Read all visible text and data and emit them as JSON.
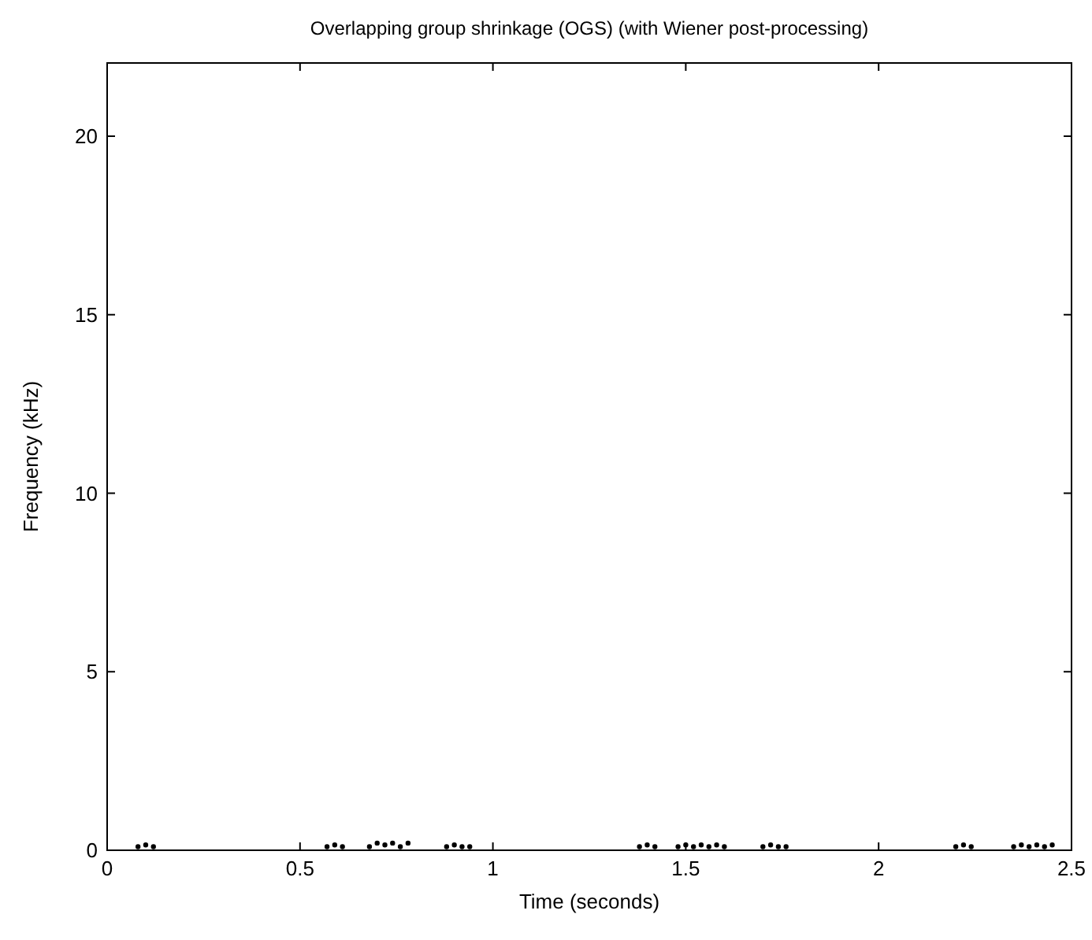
{
  "chart_data": {
    "type": "scatter",
    "title": "Overlapping group shrinkage (OGS) (with Wiener post-processing)",
    "xlabel": "Time (seconds)",
    "ylabel": "Frequency (kHz)",
    "xlim": [
      0,
      2.5
    ],
    "ylim": [
      0,
      22.05
    ],
    "xticks": [
      0,
      0.5,
      1,
      1.5,
      2,
      {
        "value": 2.5,
        "label": "2.5"
      }
    ],
    "yticks": [
      0,
      5,
      10,
      15,
      20
    ],
    "grid": false,
    "marker": "circle",
    "series": [
      {
        "color": "#000000",
        "x": [
          0.08,
          0.1,
          0.12,
          0.57,
          0.59,
          0.61,
          0.68,
          0.7,
          0.72,
          0.74,
          0.76,
          0.78,
          0.88,
          0.9,
          0.92,
          0.94,
          1.38,
          1.4,
          1.42,
          1.48,
          1.5,
          1.52,
          1.54,
          1.56,
          1.58,
          1.6,
          1.7,
          1.72,
          1.74,
          1.76,
          2.2,
          2.22,
          2.24,
          2.35,
          2.37,
          2.39,
          2.41,
          2.43,
          2.45
        ],
        "values": [
          0.1,
          0.15,
          0.1,
          0.1,
          0.15,
          0.1,
          0.1,
          0.2,
          0.15,
          0.2,
          0.1,
          0.2,
          0.1,
          0.15,
          0.1,
          0.1,
          0.1,
          0.15,
          0.1,
          0.1,
          0.15,
          0.1,
          0.15,
          0.1,
          0.15,
          0.1,
          0.1,
          0.15,
          0.1,
          0.1,
          0.1,
          0.15,
          0.1,
          0.1,
          0.15,
          0.1,
          0.15,
          0.1,
          0.15
        ]
      }
    ]
  }
}
